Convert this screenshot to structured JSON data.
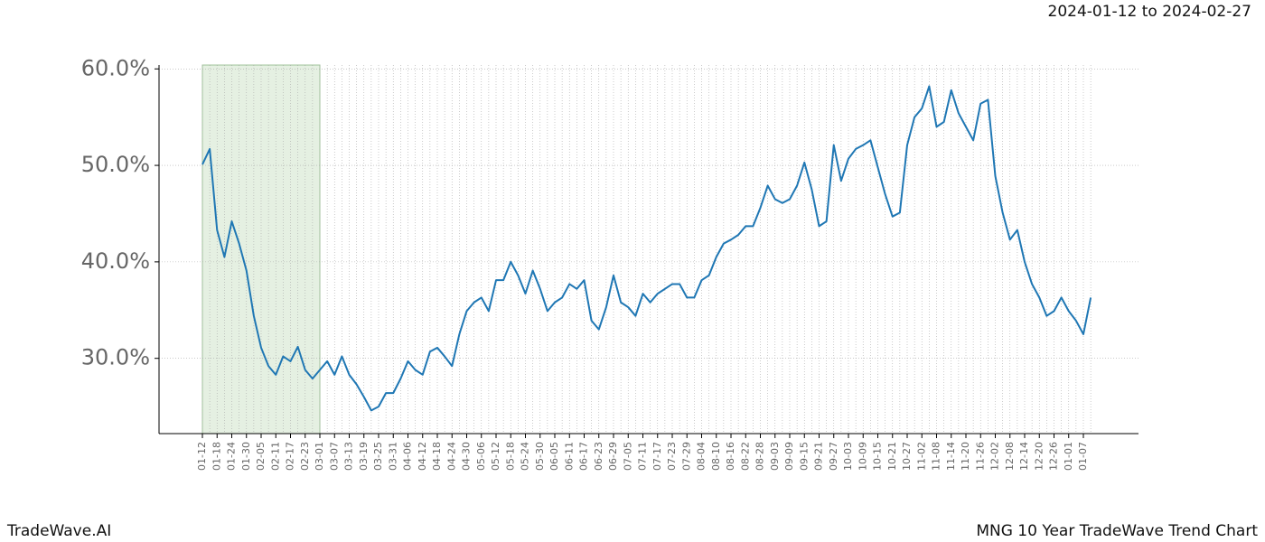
{
  "brand": "TradeWave.AI",
  "chart_data": {
    "type": "line",
    "title": "MNG 10 Year TradeWave Trend Chart",
    "subtitle": "2024-01-12 to 2024-02-27",
    "categories": [
      "01-12",
      null,
      "01-18",
      null,
      "01-24",
      null,
      "01-30",
      null,
      "02-05",
      null,
      "02-11",
      null,
      "02-17",
      null,
      "02-23",
      null,
      "03-01",
      null,
      "03-07",
      null,
      "03-13",
      null,
      "03-19",
      null,
      "03-25",
      null,
      "03-31",
      null,
      "04-06",
      null,
      "04-12",
      null,
      "04-18",
      null,
      "04-24",
      null,
      "04-30",
      null,
      "05-06",
      null,
      "05-12",
      null,
      "05-18",
      null,
      "05-24",
      null,
      "05-30",
      null,
      "06-05",
      null,
      "06-11",
      null,
      "06-17",
      null,
      "06-23",
      null,
      "06-29",
      null,
      "07-05",
      null,
      "07-11",
      null,
      "07-17",
      null,
      "07-23",
      null,
      "07-29",
      null,
      "08-04",
      null,
      "08-10",
      null,
      "08-16",
      null,
      "08-22",
      null,
      "08-28",
      null,
      "09-03",
      null,
      "09-09",
      null,
      "09-15",
      null,
      "09-21",
      null,
      "09-27",
      null,
      "10-03",
      null,
      "10-09",
      null,
      "10-15",
      null,
      "10-21",
      null,
      "10-27",
      null,
      "11-02",
      null,
      "11-08",
      null,
      "11-14",
      null,
      "11-20",
      null,
      "11-26",
      null,
      "12-02",
      null,
      "12-08",
      null,
      "12-14",
      null,
      "12-20",
      null,
      "12-26",
      null,
      "01-01",
      null,
      "01-07",
      null
    ],
    "series": [
      {
        "color": "#1f77b4",
        "values": [
          50.1,
          51.7,
          43.3,
          40.5,
          44.2,
          41.9,
          39.1,
          34.4,
          31.1,
          29.2,
          28.3,
          30.2,
          29.7,
          31.2,
          28.8,
          27.9,
          28.8,
          29.7,
          28.3,
          30.2,
          28.3,
          27.3,
          26.0,
          24.6,
          25.0,
          26.4,
          26.4,
          27.9,
          29.7,
          28.8,
          28.3,
          30.7,
          31.1,
          30.2,
          29.2,
          32.5,
          34.9,
          35.8,
          36.3,
          34.9,
          38.1,
          38.1,
          40.0,
          38.6,
          36.7,
          39.1,
          37.2,
          34.9,
          35.8,
          36.3,
          37.7,
          37.2,
          38.1,
          33.9,
          33.0,
          35.3,
          38.6,
          35.8,
          35.3,
          34.4,
          36.7,
          35.8,
          36.7,
          37.2,
          37.7,
          37.7,
          36.3,
          36.3,
          38.1,
          38.6,
          40.5,
          41.9,
          42.3,
          42.8,
          43.7,
          43.7,
          45.6,
          47.9,
          46.5,
          46.1,
          46.5,
          47.9,
          50.3,
          47.5,
          43.7,
          44.2,
          52.1,
          48.4,
          50.7,
          51.7,
          52.1,
          52.6,
          49.8,
          47.0,
          44.7,
          45.1,
          52.1,
          55.0,
          55.9,
          58.2,
          54.0,
          54.5,
          57.8,
          55.4,
          54.0,
          52.6,
          56.4,
          56.8,
          48.9,
          45.1,
          42.3,
          43.3,
          40.0,
          37.7,
          36.3,
          34.4,
          34.9,
          36.3,
          34.9,
          33.9,
          32.5,
          36.3
        ]
      }
    ],
    "ylim": [
      22.2,
      60.4
    ],
    "yticks": [
      {
        "value": 30,
        "label": "30.0%"
      },
      {
        "value": 40,
        "label": "40.0%"
      },
      {
        "value": 50,
        "label": "50.0%"
      },
      {
        "value": 60,
        "label": "60.0%"
      }
    ],
    "grid": true,
    "shade": {
      "from": 0,
      "to": 16,
      "color": "#e5f0e2"
    }
  }
}
